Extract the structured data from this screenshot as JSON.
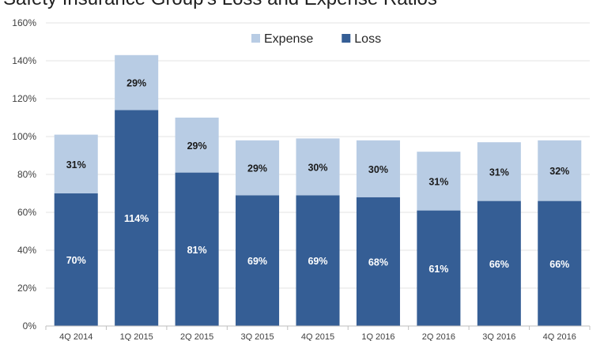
{
  "chart_data": {
    "type": "bar",
    "stacked": true,
    "title": "Safety Insurance Group's Loss and Expense Ratios",
    "xlabel": "",
    "ylabel": "",
    "categories": [
      "4Q 2014",
      "1Q 2015",
      "2Q 2015",
      "3Q 2015",
      "4Q 2015",
      "1Q 2016",
      "2Q 2016",
      "3Q 2016",
      "4Q 2016"
    ],
    "series": [
      {
        "name": "Loss",
        "color": "#355e95",
        "label_color": "#ffffff",
        "values": [
          70,
          114,
          81,
          69,
          69,
          68,
          61,
          66,
          66
        ],
        "labels": [
          "70%",
          "114%",
          "81%",
          "69%",
          "69%",
          "68%",
          "61%",
          "66%",
          "66%"
        ]
      },
      {
        "name": "Expense",
        "color": "#b8cce4",
        "label_color": "#1a1a1a",
        "values": [
          31,
          29,
          29,
          29,
          30,
          30,
          31,
          31,
          32
        ],
        "labels": [
          "31%",
          "29%",
          "29%",
          "29%",
          "30%",
          "30%",
          "31%",
          "31%",
          "32%"
        ]
      }
    ],
    "legend_order": [
      "Expense",
      "Loss"
    ],
    "legend_position": "top-center",
    "ylim": [
      0,
      160
    ],
    "yticks": [
      0,
      20,
      40,
      60,
      80,
      100,
      120,
      140,
      160
    ],
    "ytick_labels": [
      "0%",
      "20%",
      "40%",
      "60%",
      "80%",
      "100%",
      "120%",
      "140%",
      "160%"
    ],
    "grid": true
  }
}
